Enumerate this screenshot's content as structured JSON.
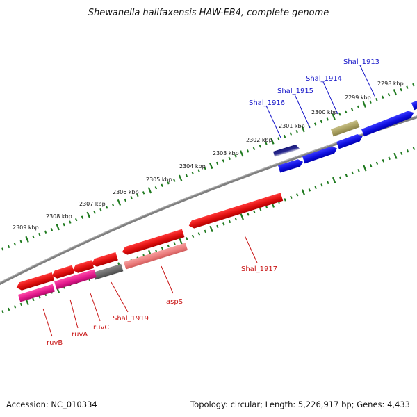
{
  "title": "Shewanella halifaxensis HAW-EB4, complete genome",
  "footer": {
    "accession": "Accession: NC_010334",
    "summary": "Topology: circular; Length: 5,226,917 bp; Genes: 4,433"
  },
  "colors": {
    "tick": "#1f7a1f",
    "backbone": "#808080",
    "forward_gene": "#1414e6",
    "reverse_gene": "#e61414",
    "other_gene": "#a9a164",
    "label_forward": "#1414c8",
    "label_reverse": "#c81414"
  },
  "scale_labels": [
    "2298 kbp",
    "2299 kbp",
    "2300 kbp",
    "2301 kbp",
    "2302 kbp",
    "2303 kbp",
    "2304 kbp",
    "2305 kbp",
    "2306 kbp",
    "2307 kbp",
    "2308 kbp",
    "2309 kbp"
  ],
  "gene_labels": {
    "shal_1913": "Shal_1913",
    "shal_1914": "Shal_1914",
    "shal_1915": "Shal_1915",
    "shal_1916": "Shal_1916",
    "shal_1917": "Shal_1917",
    "shal_1919": "Shal_1919",
    "aspS": "aspS",
    "ruvC": "ruvC",
    "ruvA": "ruvA",
    "ruvB": "ruvB"
  }
}
